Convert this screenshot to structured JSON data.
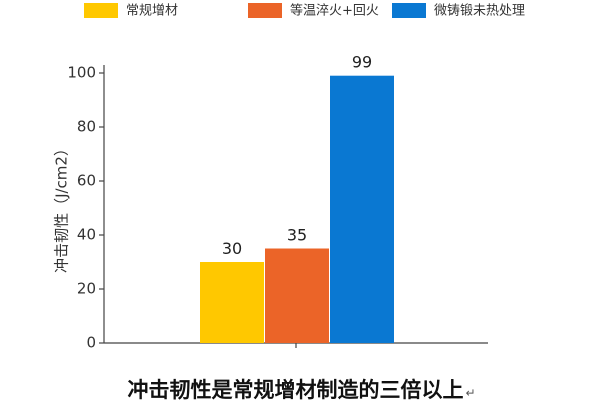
{
  "chart_data": {
    "type": "bar",
    "categories": [
      "常规增材",
      "等温淬火+回火",
      "微铸锻未热处理"
    ],
    "values": [
      30,
      35,
      99
    ],
    "data_labels": [
      "30",
      "35",
      "99"
    ],
    "colors": [
      "#FFC800",
      "#EB6428",
      "#0A78D2"
    ],
    "ylabel": "冲击韧性（J/cm2）",
    "ylim": [
      0,
      100
    ],
    "yticks": [
      0,
      20,
      40,
      60,
      80,
      100
    ],
    "grid": false,
    "legend": {
      "placement": "top",
      "entries": [
        "常规增材",
        "等温淬火+回火",
        "微铸锻未热处理"
      ]
    }
  },
  "caption": "冲击韧性是常规增材制造的三倍以上",
  "caption_mark": "↵"
}
